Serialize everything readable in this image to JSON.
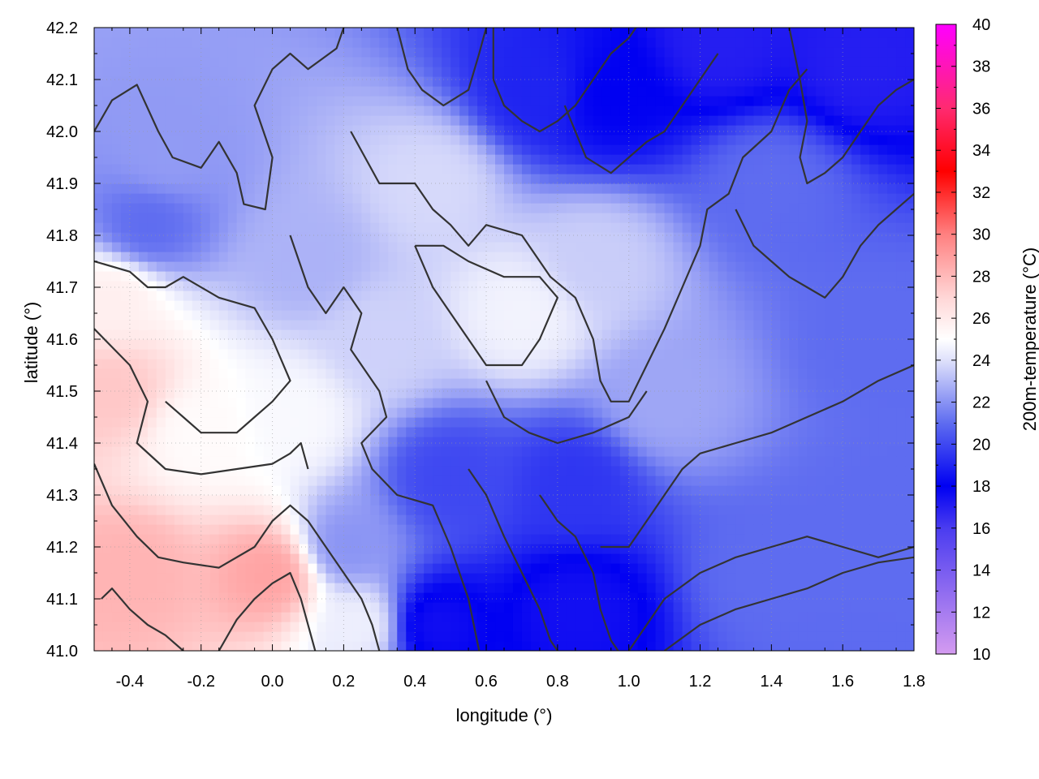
{
  "chart_data": {
    "type": "heatmap",
    "title": "",
    "xlabel": "longitude (°)",
    "ylabel": "latitude (°)",
    "cblabel": "200m-temperature (°C)",
    "xlim": [
      -0.5,
      1.8
    ],
    "ylim": [
      41.0,
      42.2
    ],
    "cblim": [
      10,
      40
    ],
    "x_ticks": [
      -0.4,
      -0.2,
      0.0,
      0.2,
      0.4,
      0.6,
      0.8,
      1.0,
      1.2,
      1.4,
      1.6,
      1.8
    ],
    "x_tick_labels": [
      "-0.4",
      "-0.2",
      "0.0",
      "0.2",
      "0.4",
      "0.6",
      "0.8",
      "1.0",
      "1.2",
      "1.4",
      "1.6",
      "1.8"
    ],
    "y_ticks": [
      41.0,
      41.1,
      41.2,
      41.3,
      41.4,
      41.5,
      41.6,
      41.7,
      41.8,
      41.9,
      42.0,
      42.1,
      42.2
    ],
    "y_tick_labels": [
      "41.0",
      "41.1",
      "41.2",
      "41.3",
      "41.4",
      "41.5",
      "41.6",
      "41.7",
      "41.8",
      "41.9",
      "42.0",
      "42.1",
      "42.2"
    ],
    "cb_ticks": [
      10,
      12,
      14,
      16,
      18,
      20,
      22,
      24,
      26,
      28,
      30,
      32,
      34,
      36,
      38,
      40
    ],
    "cb_tick_labels": [
      "10",
      "12",
      "14",
      "16",
      "18",
      "20",
      "22",
      "24",
      "26",
      "28",
      "30",
      "32",
      "34",
      "36",
      "38",
      "40"
    ],
    "grid": true,
    "colormap": [
      {
        "value": 10,
        "color": "#d49bf0"
      },
      {
        "value": 16,
        "color": "#4a3cf0"
      },
      {
        "value": 18,
        "color": "#0000f2"
      },
      {
        "value": 21,
        "color": "#5e6cf0"
      },
      {
        "value": 24,
        "color": "#dfe1fb"
      },
      {
        "value": 25,
        "color": "#ffffff"
      },
      {
        "value": 27,
        "color": "#ffd6d6"
      },
      {
        "value": 30,
        "color": "#ff8080"
      },
      {
        "value": 33,
        "color": "#ff0000"
      },
      {
        "value": 36,
        "color": "#ff2a70"
      },
      {
        "value": 40,
        "color": "#ff00ff"
      }
    ],
    "field_centers": [
      {
        "lon": 0.0,
        "lat": 41.15,
        "temp": 28.8
      },
      {
        "lon": -0.4,
        "lat": 41.15,
        "temp": 28.2
      },
      {
        "lon": -0.45,
        "lat": 41.5,
        "temp": 27.5
      },
      {
        "lon": -0.45,
        "lat": 41.68,
        "temp": 25.8
      },
      {
        "lon": -0.2,
        "lat": 41.42,
        "temp": 25.2
      },
      {
        "lon": 0.05,
        "lat": 41.45,
        "temp": 24.8
      },
      {
        "lon": 0.7,
        "lat": 41.65,
        "temp": 24.6
      },
      {
        "lon": 0.45,
        "lat": 41.9,
        "temp": 23.8
      },
      {
        "lon": 0.9,
        "lat": 41.75,
        "temp": 23.5
      },
      {
        "lon": 0.3,
        "lat": 41.6,
        "temp": 23.6
      },
      {
        "lon": 0.1,
        "lat": 41.75,
        "temp": 22.8
      },
      {
        "lon": -0.3,
        "lat": 41.95,
        "temp": 22.2
      },
      {
        "lon": -0.35,
        "lat": 41.82,
        "temp": 21.0
      },
      {
        "lon": 0.75,
        "lat": 42.08,
        "temp": 19.0
      },
      {
        "lon": 0.95,
        "lat": 42.07,
        "temp": 18.0
      },
      {
        "lon": 1.25,
        "lat": 42.17,
        "temp": 17.0
      },
      {
        "lon": 1.65,
        "lat": 42.13,
        "temp": 17.0
      },
      {
        "lon": 1.4,
        "lat": 41.9,
        "temp": 21.0
      },
      {
        "lon": 1.7,
        "lat": 41.6,
        "temp": 21.0
      },
      {
        "lon": 1.1,
        "lat": 41.48,
        "temp": 22.5
      },
      {
        "lon": 1.4,
        "lat": 41.15,
        "temp": 21.0
      },
      {
        "lon": 1.7,
        "lat": 41.25,
        "temp": 21.0
      },
      {
        "lon": 0.45,
        "lat": 41.05,
        "temp": 17.5
      },
      {
        "lon": 0.85,
        "lat": 41.08,
        "temp": 17.5
      },
      {
        "lon": 0.85,
        "lat": 41.32,
        "temp": 19.5
      },
      {
        "lon": 0.5,
        "lat": 41.33,
        "temp": 20.0
      },
      {
        "lon": 0.2,
        "lat": 41.2,
        "temp": 22.0
      },
      {
        "lon": 0.25,
        "lat": 41.05,
        "temp": 24.5
      }
    ],
    "contour_lines": [
      [
        [
          -0.5,
          42.0
        ],
        [
          -0.45,
          42.06
        ],
        [
          -0.38,
          42.09
        ],
        [
          -0.32,
          42.0
        ],
        [
          -0.28,
          41.95
        ],
        [
          -0.2,
          41.93
        ],
        [
          -0.15,
          41.98
        ],
        [
          -0.1,
          41.92
        ],
        [
          -0.08,
          41.86
        ],
        [
          -0.02,
          41.85
        ],
        [
          0.0,
          41.95
        ],
        [
          -0.05,
          42.05
        ],
        [
          0.0,
          42.12
        ],
        [
          0.05,
          42.15
        ],
        [
          0.1,
          42.12
        ],
        [
          0.18,
          42.16
        ],
        [
          0.2,
          42.2
        ]
      ],
      [
        [
          -0.5,
          41.75
        ],
        [
          -0.4,
          41.73
        ],
        [
          -0.35,
          41.7
        ],
        [
          -0.3,
          41.7
        ],
        [
          -0.25,
          41.72
        ],
        [
          -0.15,
          41.68
        ],
        [
          -0.05,
          41.66
        ],
        [
          0.0,
          41.6
        ],
        [
          0.05,
          41.52
        ],
        [
          0.0,
          41.48
        ],
        [
          -0.05,
          41.45
        ],
        [
          -0.1,
          41.42
        ],
        [
          -0.2,
          41.42
        ],
        [
          -0.25,
          41.45
        ],
        [
          -0.3,
          41.48
        ]
      ],
      [
        [
          -0.5,
          41.62
        ],
        [
          -0.4,
          41.55
        ],
        [
          -0.35,
          41.48
        ],
        [
          -0.38,
          41.4
        ],
        [
          -0.3,
          41.35
        ],
        [
          -0.2,
          41.34
        ],
        [
          -0.1,
          41.35
        ],
        [
          0.0,
          41.36
        ],
        [
          0.05,
          41.38
        ],
        [
          0.08,
          41.4
        ],
        [
          0.1,
          41.35
        ]
      ],
      [
        [
          -0.5,
          41.36
        ],
        [
          -0.45,
          41.28
        ],
        [
          -0.38,
          41.22
        ],
        [
          -0.32,
          41.18
        ],
        [
          -0.25,
          41.17
        ],
        [
          -0.15,
          41.16
        ],
        [
          -0.05,
          41.2
        ],
        [
          0.0,
          41.25
        ],
        [
          0.05,
          41.28
        ],
        [
          0.1,
          41.25
        ],
        [
          0.15,
          41.2
        ],
        [
          0.2,
          41.15
        ],
        [
          0.25,
          41.1
        ],
        [
          0.28,
          41.05
        ],
        [
          0.3,
          41.0
        ]
      ],
      [
        [
          -0.48,
          41.1
        ],
        [
          -0.45,
          41.12
        ],
        [
          -0.4,
          41.08
        ],
        [
          -0.35,
          41.05
        ],
        [
          -0.3,
          41.03
        ],
        [
          -0.25,
          41.0
        ]
      ],
      [
        [
          -0.15,
          41.0
        ],
        [
          -0.1,
          41.06
        ],
        [
          -0.05,
          41.1
        ],
        [
          0.0,
          41.13
        ],
        [
          0.05,
          41.15
        ],
        [
          0.08,
          41.1
        ],
        [
          0.1,
          41.05
        ],
        [
          0.12,
          41.0
        ]
      ],
      [
        [
          0.05,
          41.8
        ],
        [
          0.1,
          41.7
        ],
        [
          0.15,
          41.65
        ],
        [
          0.2,
          41.7
        ],
        [
          0.25,
          41.65
        ],
        [
          0.22,
          41.58
        ],
        [
          0.3,
          41.5
        ],
        [
          0.32,
          41.45
        ],
        [
          0.25,
          41.4
        ],
        [
          0.28,
          41.35
        ],
        [
          0.35,
          41.3
        ],
        [
          0.45,
          41.28
        ],
        [
          0.5,
          41.2
        ],
        [
          0.55,
          41.1
        ],
        [
          0.58,
          41.0
        ]
      ],
      [
        [
          0.22,
          42.0
        ],
        [
          0.3,
          41.9
        ],
        [
          0.4,
          41.9
        ],
        [
          0.45,
          41.85
        ],
        [
          0.5,
          41.82
        ],
        [
          0.55,
          41.78
        ],
        [
          0.6,
          41.82
        ],
        [
          0.7,
          41.8
        ],
        [
          0.78,
          41.72
        ],
        [
          0.85,
          41.68
        ],
        [
          0.9,
          41.6
        ],
        [
          0.92,
          41.52
        ],
        [
          0.95,
          41.48
        ],
        [
          1.0,
          41.48
        ],
        [
          1.05,
          41.55
        ],
        [
          1.1,
          41.62
        ],
        [
          1.15,
          41.7
        ],
        [
          1.2,
          41.78
        ],
        [
          1.22,
          41.85
        ],
        [
          1.28,
          41.88
        ],
        [
          1.32,
          41.95
        ],
        [
          1.4,
          42.0
        ],
        [
          1.45,
          42.08
        ],
        [
          1.5,
          42.12
        ]
      ],
      [
        [
          0.4,
          41.78
        ],
        [
          0.45,
          41.7
        ],
        [
          0.5,
          41.65
        ],
        [
          0.55,
          41.6
        ],
        [
          0.6,
          41.55
        ],
        [
          0.7,
          41.55
        ],
        [
          0.75,
          41.6
        ],
        [
          0.8,
          41.68
        ],
        [
          0.75,
          41.72
        ],
        [
          0.65,
          41.72
        ],
        [
          0.55,
          41.75
        ],
        [
          0.48,
          41.78
        ],
        [
          0.4,
          41.78
        ]
      ],
      [
        [
          0.6,
          41.52
        ],
        [
          0.65,
          41.45
        ],
        [
          0.72,
          41.42
        ],
        [
          0.8,
          41.4
        ],
        [
          0.9,
          41.42
        ],
        [
          1.0,
          41.45
        ],
        [
          1.05,
          41.5
        ]
      ],
      [
        [
          0.62,
          42.2
        ],
        [
          0.62,
          42.1
        ],
        [
          0.65,
          42.05
        ],
        [
          0.7,
          42.02
        ],
        [
          0.75,
          42.0
        ],
        [
          0.8,
          42.02
        ],
        [
          0.85,
          42.05
        ],
        [
          0.9,
          42.1
        ],
        [
          0.95,
          42.15
        ],
        [
          1.0,
          42.18
        ],
        [
          1.02,
          42.2
        ]
      ],
      [
        [
          0.55,
          41.35
        ],
        [
          0.6,
          41.3
        ],
        [
          0.65,
          41.22
        ],
        [
          0.7,
          41.15
        ],
        [
          0.75,
          41.08
        ],
        [
          0.78,
          41.02
        ],
        [
          0.8,
          41.0
        ]
      ],
      [
        [
          0.75,
          41.3
        ],
        [
          0.8,
          41.25
        ],
        [
          0.85,
          41.22
        ],
        [
          0.9,
          41.15
        ],
        [
          0.92,
          41.08
        ],
        [
          0.95,
          41.02
        ],
        [
          0.97,
          41.0
        ]
      ],
      [
        [
          0.92,
          41.2
        ],
        [
          1.0,
          41.2
        ],
        [
          1.05,
          41.25
        ],
        [
          1.1,
          41.3
        ],
        [
          1.15,
          41.35
        ],
        [
          1.2,
          41.38
        ],
        [
          1.3,
          41.4
        ],
        [
          1.4,
          41.42
        ],
        [
          1.5,
          41.45
        ],
        [
          1.6,
          41.48
        ],
        [
          1.7,
          41.52
        ],
        [
          1.8,
          41.55
        ]
      ],
      [
        [
          1.0,
          41.0
        ],
        [
          1.05,
          41.05
        ],
        [
          1.1,
          41.1
        ],
        [
          1.2,
          41.15
        ],
        [
          1.3,
          41.18
        ],
        [
          1.4,
          41.2
        ],
        [
          1.5,
          41.22
        ],
        [
          1.6,
          41.2
        ],
        [
          1.7,
          41.18
        ],
        [
          1.8,
          41.2
        ]
      ],
      [
        [
          1.1,
          41.0
        ],
        [
          1.2,
          41.05
        ],
        [
          1.3,
          41.08
        ],
        [
          1.4,
          41.1
        ],
        [
          1.5,
          41.12
        ],
        [
          1.6,
          41.15
        ],
        [
          1.7,
          41.17
        ],
        [
          1.8,
          41.18
        ]
      ],
      [
        [
          1.3,
          41.85
        ],
        [
          1.35,
          41.78
        ],
        [
          1.4,
          41.75
        ],
        [
          1.45,
          41.72
        ],
        [
          1.5,
          41.7
        ],
        [
          1.55,
          41.68
        ],
        [
          1.6,
          41.72
        ],
        [
          1.65,
          41.78
        ],
        [
          1.7,
          41.82
        ],
        [
          1.75,
          41.85
        ],
        [
          1.8,
          41.88
        ]
      ],
      [
        [
          1.45,
          42.2
        ],
        [
          1.48,
          42.1
        ],
        [
          1.5,
          42.02
        ],
        [
          1.48,
          41.95
        ],
        [
          1.5,
          41.9
        ],
        [
          1.55,
          41.92
        ],
        [
          1.6,
          41.95
        ],
        [
          1.65,
          42.0
        ],
        [
          1.7,
          42.05
        ],
        [
          1.75,
          42.08
        ],
        [
          1.8,
          42.1
        ]
      ],
      [
        [
          0.35,
          42.2
        ],
        [
          0.38,
          42.12
        ],
        [
          0.42,
          42.08
        ],
        [
          0.48,
          42.05
        ],
        [
          0.55,
          42.08
        ],
        [
          0.58,
          42.15
        ],
        [
          0.6,
          42.2
        ]
      ],
      [
        [
          0.82,
          42.05
        ],
        [
          0.85,
          42.0
        ],
        [
          0.88,
          41.95
        ],
        [
          0.95,
          41.92
        ],
        [
          1.0,
          41.95
        ],
        [
          1.05,
          41.98
        ],
        [
          1.1,
          42.0
        ],
        [
          1.15,
          42.05
        ],
        [
          1.2,
          42.1
        ],
        [
          1.25,
          42.15
        ]
      ]
    ]
  }
}
